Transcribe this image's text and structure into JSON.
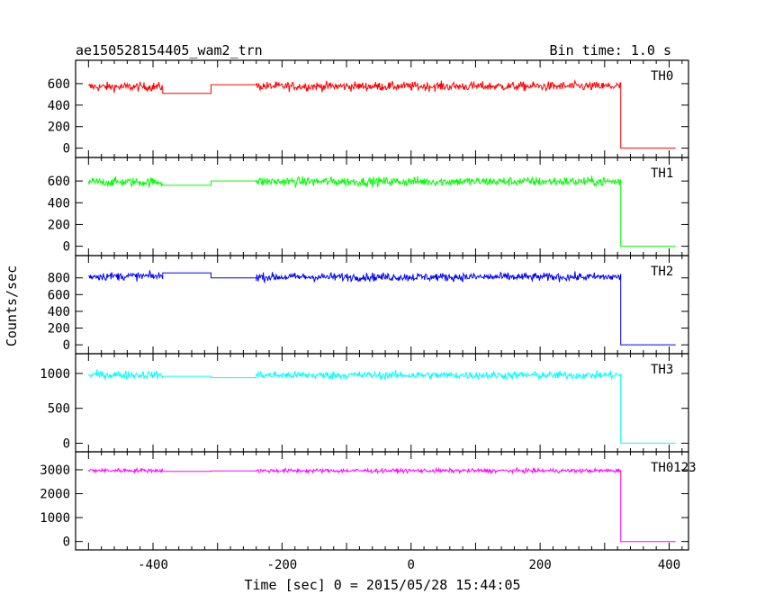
{
  "chart_data": {
    "type": "line",
    "title": "ae150528154405_wam2_trn",
    "subtitle": "Bin time: 1.0 s",
    "xlabel": "Time [sec] 0 = 2015/05/28 15:44:05",
    "ylabel": "Counts/sec",
    "xlim": [
      -520,
      430
    ],
    "xticks": [
      "-400",
      "-200",
      "0",
      "200",
      "400"
    ],
    "x_tick_values": [
      -400,
      -200,
      0,
      200,
      400
    ],
    "panels": [
      {
        "name": "TH0",
        "color": "#ff0000",
        "ylim": [
          -20,
          750
        ],
        "yticks": [
          "0",
          "200",
          "400",
          "600"
        ],
        "ytick_values": [
          0,
          200,
          400,
          600
        ],
        "segments": [
          {
            "x_start": -500,
            "x_end": -385,
            "mean": 570,
            "noise": 30,
            "kind": "noisy"
          },
          {
            "x_start": -385,
            "x_end": -310,
            "mean": 510,
            "kind": "flat"
          },
          {
            "x_start": -310,
            "x_end": -240,
            "mean": 590,
            "kind": "flat"
          },
          {
            "x_start": -240,
            "x_end": 325,
            "mean": 575,
            "noise": 30,
            "kind": "noisy"
          },
          {
            "x_start": 325,
            "x_end": 410,
            "mean": 0,
            "kind": "flat"
          }
        ]
      },
      {
        "name": "TH1",
        "color": "#00ff00",
        "ylim": [
          -20,
          750
        ],
        "yticks": [
          "0",
          "200",
          "400",
          "600"
        ],
        "ytick_values": [
          0,
          200,
          400,
          600
        ],
        "segments": [
          {
            "x_start": -500,
            "x_end": -385,
            "mean": 590,
            "noise": 30,
            "kind": "noisy"
          },
          {
            "x_start": -385,
            "x_end": -310,
            "mean": 560,
            "kind": "flat"
          },
          {
            "x_start": -310,
            "x_end": -240,
            "mean": 600,
            "kind": "flat"
          },
          {
            "x_start": -240,
            "x_end": 325,
            "mean": 595,
            "noise": 30,
            "kind": "noisy"
          },
          {
            "x_start": 325,
            "x_end": 410,
            "mean": 0,
            "kind": "flat"
          }
        ]
      },
      {
        "name": "TH2",
        "color": "#0000ff",
        "ylim": [
          -20,
          980
        ],
        "yticks": [
          "0",
          "200",
          "400",
          "600",
          "800"
        ],
        "ytick_values": [
          0,
          200,
          400,
          600,
          800
        ],
        "segments": [
          {
            "x_start": -500,
            "x_end": -385,
            "mean": 820,
            "noise": 35,
            "kind": "noisy"
          },
          {
            "x_start": -385,
            "x_end": -310,
            "mean": 860,
            "kind": "flat"
          },
          {
            "x_start": -310,
            "x_end": -240,
            "mean": 800,
            "kind": "flat"
          },
          {
            "x_start": -240,
            "x_end": 325,
            "mean": 810,
            "noise": 35,
            "kind": "noisy"
          },
          {
            "x_start": 325,
            "x_end": 410,
            "mean": 0,
            "kind": "flat"
          }
        ]
      },
      {
        "name": "TH3",
        "color": "#00ffff",
        "ylim": [
          -20,
          1180
        ],
        "yticks": [
          "0",
          "500",
          "1000"
        ],
        "ytick_values": [
          0,
          500,
          1000
        ],
        "segments": [
          {
            "x_start": -500,
            "x_end": -385,
            "mean": 980,
            "noise": 40,
            "kind": "noisy"
          },
          {
            "x_start": -385,
            "x_end": -310,
            "mean": 960,
            "kind": "flat"
          },
          {
            "x_start": -310,
            "x_end": -240,
            "mean": 940,
            "kind": "flat"
          },
          {
            "x_start": -240,
            "x_end": 325,
            "mean": 975,
            "noise": 40,
            "kind": "noisy"
          },
          {
            "x_start": 325,
            "x_end": 410,
            "mean": 0,
            "kind": "flat"
          }
        ]
      },
      {
        "name": "TH0123",
        "color": "#ff00ff",
        "ylim": [
          -50,
          3450
        ],
        "yticks": [
          "0",
          "1000",
          "2000",
          "3000"
        ],
        "ytick_values": [
          0,
          1000,
          2000,
          3000
        ],
        "segments": [
          {
            "x_start": -500,
            "x_end": -385,
            "mean": 2970,
            "noise": 60,
            "kind": "noisy"
          },
          {
            "x_start": -385,
            "x_end": -310,
            "mean": 2930,
            "kind": "flat"
          },
          {
            "x_start": -310,
            "x_end": -240,
            "mean": 2950,
            "kind": "flat"
          },
          {
            "x_start": -240,
            "x_end": 325,
            "mean": 2960,
            "noise": 60,
            "kind": "noisy"
          },
          {
            "x_start": 325,
            "x_end": 410,
            "mean": 0,
            "kind": "flat"
          }
        ]
      }
    ]
  }
}
